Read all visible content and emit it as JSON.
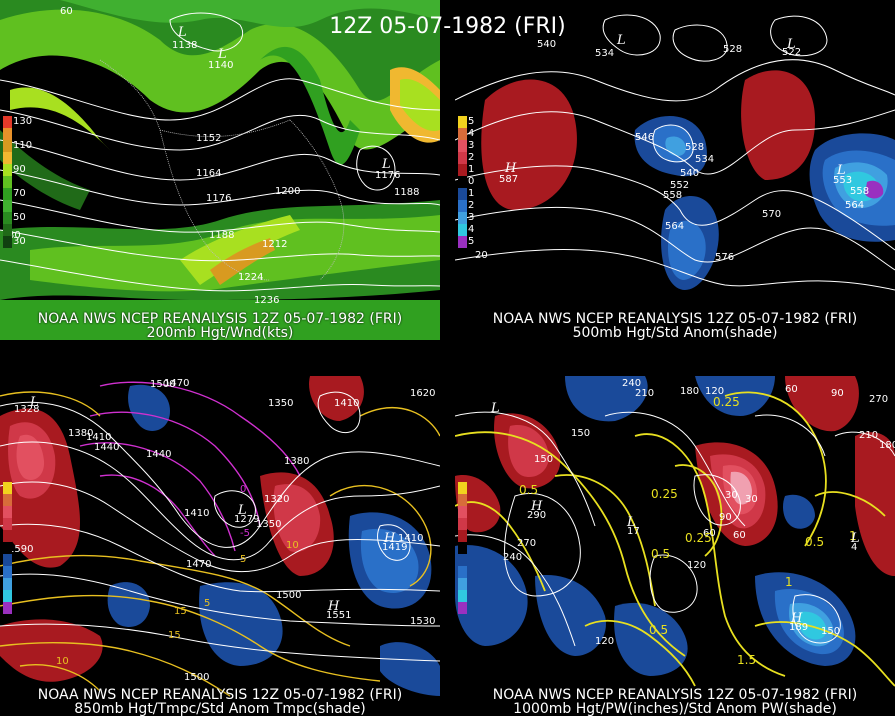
{
  "title": "12Z 05-07-1982 (FRI)",
  "panels": [
    {
      "id": "200mb",
      "caption1": "NOAA NWS NCEP REANALYSIS 12Z 05-07-1982 (FRI)",
      "caption2": "200mb Hgt/Wnd(kts)",
      "legend": [
        {
          "label": "130",
          "color": "#e43a2a"
        },
        {
          "label": "",
          "color": "#e8922a"
        },
        {
          "label": "110",
          "color": "#d89a20"
        },
        {
          "label": "",
          "color": "#f0b830"
        },
        {
          "label": "90",
          "color": "#a8e020"
        },
        {
          "label": "",
          "color": "#60c020"
        },
        {
          "label": "70",
          "color": "#30a020"
        },
        {
          "label": "",
          "color": "#40b030"
        },
        {
          "label": "50",
          "color": "#2a8a20"
        },
        {
          "label": "",
          "color": "#206a18"
        },
        {
          "label": "30",
          "color": "#104010"
        }
      ],
      "contour_labels": [
        "1152",
        "1164",
        "1176",
        "1188",
        "1200",
        "1212",
        "1224",
        "1236",
        "1176",
        "1188"
      ],
      "centers": [
        {
          "kind": "L",
          "value": "1138"
        },
        {
          "kind": "L",
          "value": "1140"
        },
        {
          "kind": "L",
          "value": "1176"
        }
      ],
      "lat_labels": [
        "60",
        "30"
      ]
    },
    {
      "id": "500mb",
      "caption1": "NOAA NWS NCEP REANALYSIS 12Z 05-07-1982 (FRI)",
      "caption2": "500mb Hgt/Std Anom(shade)",
      "legend": [
        {
          "label": "5",
          "color": "#f2d21e"
        },
        {
          "label": "4",
          "color": "#d86c3a"
        },
        {
          "label": "3",
          "color": "#e25060"
        },
        {
          "label": "2",
          "color": "#d03848"
        },
        {
          "label": "1",
          "color": "#a81a20"
        },
        {
          "label": "0",
          "color": "#000000"
        },
        {
          "label": "1",
          "color": "#1a4a9a"
        },
        {
          "label": "2",
          "color": "#2a70c8"
        },
        {
          "label": "3",
          "color": "#40a0e0"
        },
        {
          "label": "4",
          "color": "#30c8e0"
        },
        {
          "label": "5",
          "color": "#9a30c0"
        }
      ],
      "contour_labels": [
        "540",
        "534",
        "528",
        "522",
        "546",
        "528",
        "534",
        "540",
        "552",
        "558",
        "564",
        "570",
        "576",
        "558",
        "564"
      ],
      "centers": [
        {
          "kind": "L",
          "value": ""
        },
        {
          "kind": "L",
          "value": ""
        },
        {
          "kind": "H",
          "value": "587"
        },
        {
          "kind": "L",
          "value": "553"
        }
      ],
      "lat_labels": [
        "20"
      ]
    },
    {
      "id": "850mb",
      "caption1": "NOAA NWS NCEP REANALYSIS 12Z 05-07-1982 (FRI)",
      "caption2": "850mb Hgt/Tmpc/Std Anom Tmpc(shade)",
      "legend": [
        {
          "label": "",
          "color": "#f2d21e"
        },
        {
          "label": "",
          "color": "#d86c3a"
        },
        {
          "label": "",
          "color": "#e25060"
        },
        {
          "label": "",
          "color": "#d03848"
        },
        {
          "label": "",
          "color": "#a81a20"
        },
        {
          "label": "",
          "color": "#000000"
        },
        {
          "label": "",
          "color": "#1a4a9a"
        },
        {
          "label": "",
          "color": "#2a70c8"
        },
        {
          "label": "",
          "color": "#40a0e0"
        },
        {
          "label": "",
          "color": "#30c8e0"
        },
        {
          "label": "",
          "color": "#9a30c0"
        }
      ],
      "contour_labels": [
        "1500",
        "1470",
        "1410",
        "1440",
        "1380",
        "1440",
        "1410",
        "1350",
        "1380",
        "1410",
        "1470",
        "1500",
        "1620",
        "1590",
        "1530",
        "1500",
        "1410",
        "1350",
        "1320"
      ],
      "temp_labels": [
        "0",
        "-5",
        "5",
        "10",
        "15",
        "10",
        "5",
        "15"
      ],
      "centers": [
        {
          "kind": "L",
          "value": "1328"
        },
        {
          "kind": "H",
          "value": "1419"
        },
        {
          "kind": "H",
          "value": "1551"
        },
        {
          "kind": "L",
          "value": "1279"
        }
      ]
    },
    {
      "id": "1000mb",
      "caption1": "NOAA NWS NCEP REANALYSIS 12Z 05-07-1982 (FRI)",
      "caption2": "1000mb Hgt/PW(inches)/Std Anom PW(shade)",
      "legend": [
        {
          "label": "",
          "color": "#f2d21e"
        },
        {
          "label": "",
          "color": "#d86c3a"
        },
        {
          "label": "",
          "color": "#e25060"
        },
        {
          "label": "",
          "color": "#d03848"
        },
        {
          "label": "",
          "color": "#a81a20"
        },
        {
          "label": "",
          "color": "#000000"
        },
        {
          "label": "",
          "color": "#1a4a9a"
        },
        {
          "label": "",
          "color": "#2a70c8"
        },
        {
          "label": "",
          "color": "#40a0e0"
        },
        {
          "label": "",
          "color": "#30c8e0"
        },
        {
          "label": "",
          "color": "#9a30c0"
        }
      ],
      "contour_labels": [
        "240",
        "210",
        "180",
        "120",
        "60",
        "90",
        "150",
        "270",
        "240",
        "150",
        "120",
        "90",
        "60",
        "30",
        "150",
        "210",
        "270",
        "180",
        "60",
        "30",
        "120"
      ],
      "pw_labels": [
        "0.25",
        "0.5",
        "0.25",
        "0.5",
        "0.25",
        "0.5",
        "1",
        "1.5",
        "0.5",
        "1"
      ],
      "centers": [
        {
          "kind": "L",
          "value": ""
        },
        {
          "kind": "H",
          "value": "290"
        },
        {
          "kind": "L",
          "value": "17"
        },
        {
          "kind": "H",
          "value": "189"
        },
        {
          "kind": "L",
          "value": "4"
        }
      ]
    }
  ]
}
